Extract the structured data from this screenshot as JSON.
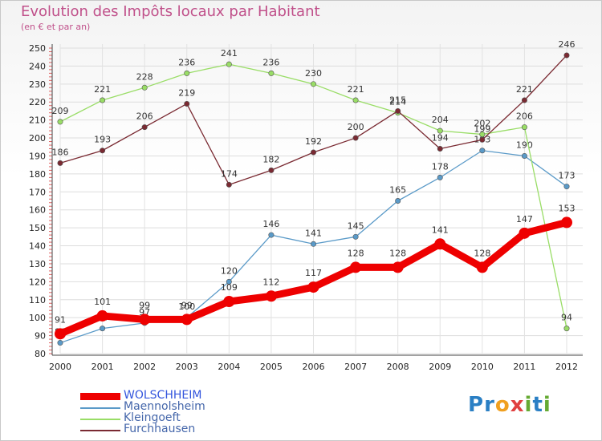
{
  "header": {
    "title": "Evolution des Impôts locaux par Habitant",
    "subtitle": "(en € et par an)"
  },
  "brand": {
    "text": "Proxiti",
    "letters": [
      {
        "ch": "P",
        "color": "#2a7fc4"
      },
      {
        "ch": "r",
        "color": "#2a7fc4"
      },
      {
        "ch": "o",
        "color": "#f0a020"
      },
      {
        "ch": "x",
        "color": "#e04040"
      },
      {
        "ch": "i",
        "color": "#66aa33"
      },
      {
        "ch": "t",
        "color": "#2a7fc4"
      },
      {
        "ch": "i",
        "color": "#66aa33"
      }
    ]
  },
  "chart_data": {
    "type": "line",
    "title": "Evolution des Impôts locaux par Habitant",
    "subtitle": "(en € et par an)",
    "xlabel": "",
    "ylabel": "",
    "x": [
      2000,
      2001,
      2002,
      2003,
      2004,
      2005,
      2006,
      2007,
      2008,
      2009,
      2010,
      2011,
      2012
    ],
    "ylim": [
      80,
      250
    ],
    "yticks": [
      80,
      90,
      100,
      110,
      120,
      130,
      140,
      150,
      160,
      170,
      180,
      190,
      200,
      210,
      220,
      230,
      240,
      250
    ],
    "grid": true,
    "legend_position": "bottom-left",
    "series": [
      {
        "name": "Maennolsheim",
        "color": "#5a9ac8",
        "values": [
          86,
          94,
          97,
          100,
          120,
          146,
          141,
          145,
          165,
          178,
          193,
          190,
          173
        ]
      },
      {
        "name": "Kleingoeft",
        "color": "#99dd66",
        "values": [
          209,
          221,
          228,
          236,
          241,
          236,
          230,
          221,
          214,
          204,
          202,
          206,
          94
        ]
      },
      {
        "name": "Furchhausen",
        "color": "#7a2a32",
        "values": [
          186,
          193,
          206,
          219,
          174,
          182,
          192,
          200,
          215,
          194,
          199,
          221,
          246
        ]
      },
      {
        "name": "WOLSCHHEIM",
        "color": "#ee0000",
        "values": [
          91,
          101,
          99,
          99,
          109,
          112,
          117,
          128,
          128,
          141,
          128,
          147,
          153
        ]
      }
    ],
    "legend_order": [
      "WOLSCHHEIM",
      "Maennolsheim",
      "Kleingoeft",
      "Furchhausen"
    ]
  }
}
